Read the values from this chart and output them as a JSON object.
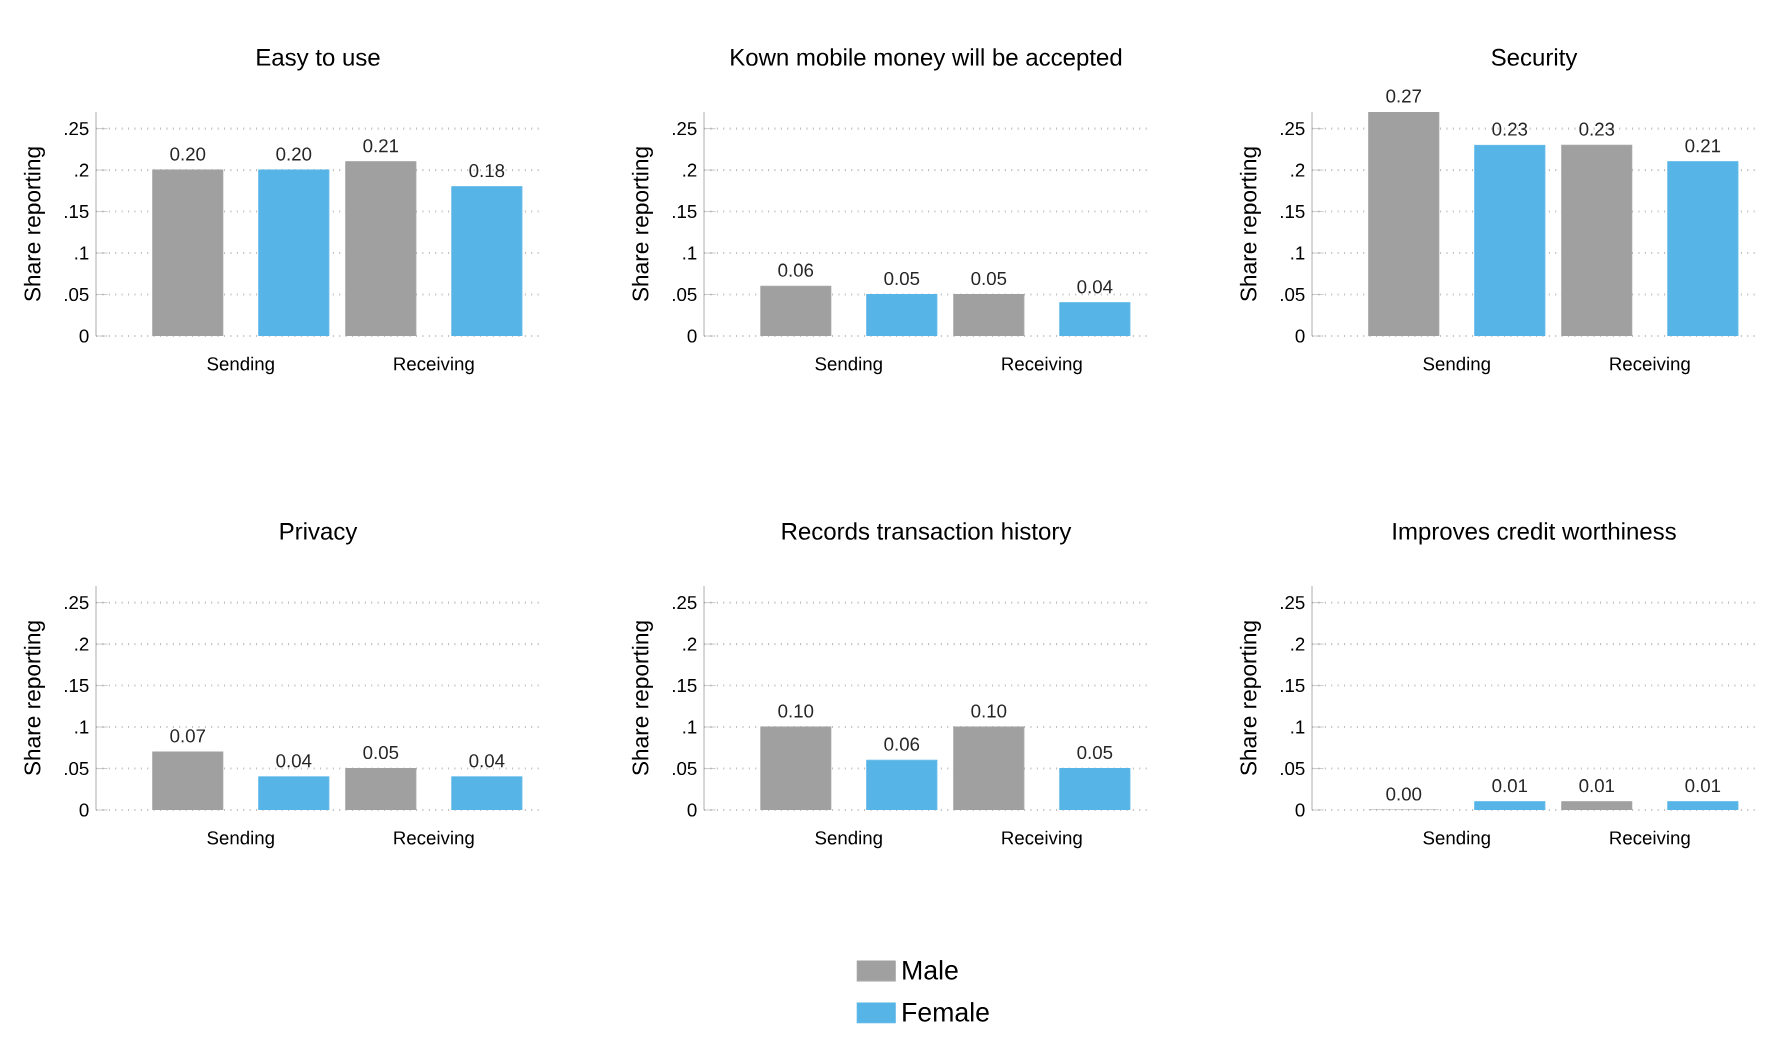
{
  "chart_data": [
    {
      "type": "bar",
      "title": "Easy to use",
      "ylabel": "Share reporting",
      "categories": [
        "Sending",
        "Receiving"
      ],
      "ylim": [
        0,
        0.27
      ],
      "yticks": [
        0,
        {
          "value": 0.05,
          "label": ".05"
        },
        {
          "value": 0.1,
          "label": ".1"
        },
        {
          "value": 0.15,
          "label": ".15"
        },
        {
          "value": 0.2,
          "label": ".2"
        },
        {
          "value": 0.25,
          "label": ".25"
        }
      ],
      "grid": "y",
      "series": [
        {
          "color": "#a0a0a0",
          "values": [
            0.2,
            0.21
          ],
          "value_labels": [
            "0.20",
            "0.21"
          ]
        },
        {
          "color": "#56b4e6",
          "values": [
            0.2,
            0.18
          ],
          "value_labels": [
            "0.20",
            "0.18"
          ]
        }
      ]
    },
    {
      "type": "bar",
      "title": "Kown mobile money will be accepted",
      "ylabel": "Share reporting",
      "categories": [
        "Sending",
        "Receiving"
      ],
      "ylim": [
        0,
        0.27
      ],
      "yticks": [
        0,
        {
          "value": 0.05,
          "label": ".05"
        },
        {
          "value": 0.1,
          "label": ".1"
        },
        {
          "value": 0.15,
          "label": ".15"
        },
        {
          "value": 0.2,
          "label": ".2"
        },
        {
          "value": 0.25,
          "label": ".25"
        }
      ],
      "grid": "y",
      "series": [
        {
          "color": "#a0a0a0",
          "values": [
            0.06,
            0.05
          ],
          "value_labels": [
            "0.06",
            "0.05"
          ]
        },
        {
          "color": "#56b4e6",
          "values": [
            0.05,
            0.04
          ],
          "value_labels": [
            "0.05",
            "0.04"
          ]
        }
      ]
    },
    {
      "type": "bar",
      "title": "Security",
      "ylabel": "Share reporting",
      "categories": [
        "Sending",
        "Receiving"
      ],
      "ylim": [
        0,
        0.27
      ],
      "yticks": [
        0,
        {
          "value": 0.05,
          "label": ".05"
        },
        {
          "value": 0.1,
          "label": ".1"
        },
        {
          "value": 0.15,
          "label": ".15"
        },
        {
          "value": 0.2,
          "label": ".2"
        },
        {
          "value": 0.25,
          "label": ".25"
        }
      ],
      "grid": "y",
      "series": [
        {
          "color": "#a0a0a0",
          "values": [
            0.27,
            0.23
          ],
          "value_labels": [
            "0.27",
            "0.23"
          ]
        },
        {
          "color": "#56b4e6",
          "values": [
            0.23,
            0.21
          ],
          "value_labels": [
            "0.23",
            "0.21"
          ]
        }
      ]
    },
    {
      "type": "bar",
      "title": "Privacy",
      "ylabel": "Share reporting",
      "categories": [
        "Sending",
        "Receiving"
      ],
      "ylim": [
        0,
        0.27
      ],
      "yticks": [
        0,
        {
          "value": 0.05,
          "label": ".05"
        },
        {
          "value": 0.1,
          "label": ".1"
        },
        {
          "value": 0.15,
          "label": ".15"
        },
        {
          "value": 0.2,
          "label": ".2"
        },
        {
          "value": 0.25,
          "label": ".25"
        }
      ],
      "grid": "y",
      "series": [
        {
          "color": "#a0a0a0",
          "values": [
            0.07,
            0.05
          ],
          "value_labels": [
            "0.07",
            "0.05"
          ]
        },
        {
          "color": "#56b4e6",
          "values": [
            0.04,
            0.04
          ],
          "value_labels": [
            "0.04",
            "0.04"
          ]
        }
      ]
    },
    {
      "type": "bar",
      "title": "Records transaction history",
      "ylabel": "Share reporting",
      "categories": [
        "Sending",
        "Receiving"
      ],
      "ylim": [
        0,
        0.27
      ],
      "yticks": [
        0,
        {
          "value": 0.05,
          "label": ".05"
        },
        {
          "value": 0.1,
          "label": ".1"
        },
        {
          "value": 0.15,
          "label": ".15"
        },
        {
          "value": 0.2,
          "label": ".2"
        },
        {
          "value": 0.25,
          "label": ".25"
        }
      ],
      "grid": "y",
      "legend": "bottom",
      "series": [
        {
          "name": "Male",
          "color": "#a0a0a0",
          "values": [
            0.1,
            0.1
          ],
          "value_labels": [
            "0.10",
            "0.10"
          ]
        },
        {
          "name": "Female",
          "color": "#56b4e6",
          "values": [
            0.06,
            0.05
          ],
          "value_labels": [
            "0.06",
            "0.05"
          ]
        }
      ]
    },
    {
      "type": "bar",
      "title": "Improves credit worthiness",
      "ylabel": "Share reporting",
      "categories": [
        "Sending",
        "Receiving"
      ],
      "ylim": [
        0,
        0.27
      ],
      "yticks": [
        0,
        {
          "value": 0.05,
          "label": ".05"
        },
        {
          "value": 0.1,
          "label": ".1"
        },
        {
          "value": 0.15,
          "label": ".15"
        },
        {
          "value": 0.2,
          "label": ".2"
        },
        {
          "value": 0.25,
          "label": ".25"
        }
      ],
      "grid": "y",
      "series": [
        {
          "color": "#a0a0a0",
          "values": [
            0.0,
            0.01
          ],
          "value_labels": [
            "0.00",
            "0.01"
          ]
        },
        {
          "color": "#56b4e6",
          "values": [
            0.01,
            0.01
          ],
          "value_labels": [
            "0.01",
            "0.01"
          ]
        }
      ]
    }
  ]
}
